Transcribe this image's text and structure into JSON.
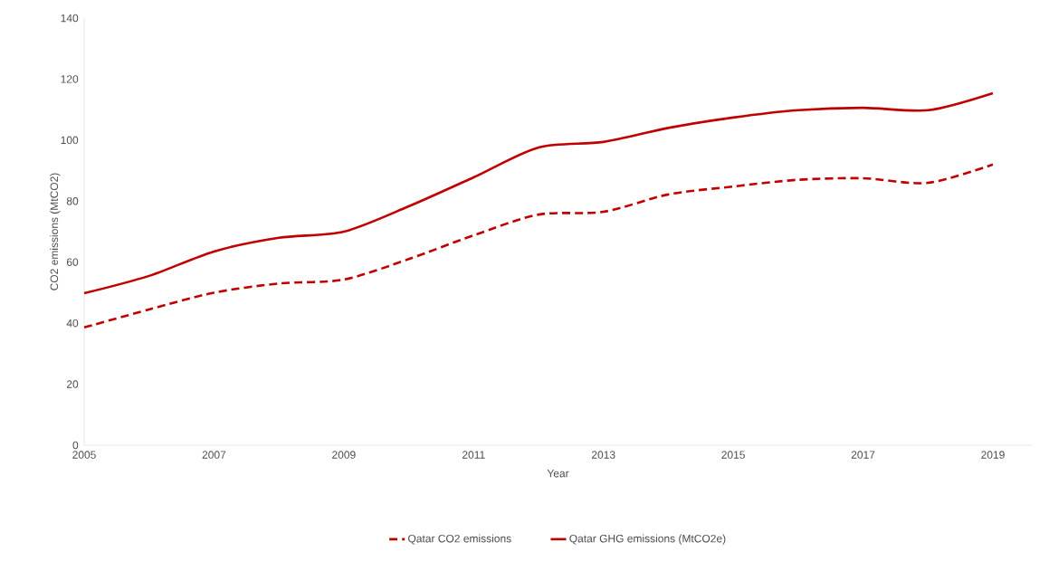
{
  "chart_data": {
    "type": "line",
    "xlabel": "Year",
    "ylabel": "CO2 emissions (MtCO2)",
    "x": [
      2005,
      2006,
      2007,
      2008,
      2009,
      2010,
      2011,
      2012,
      2013,
      2014,
      2015,
      2016,
      2017,
      2018,
      2019
    ],
    "series": [
      {
        "name": "Qatar CO2 emissions",
        "color": "#c00000",
        "line_style": "dashed",
        "values": [
          38.6,
          44.5,
          50,
          53,
          54.3,
          61,
          68.8,
          75.6,
          76.5,
          82.2,
          84.8,
          87,
          87.5,
          86,
          92
        ]
      },
      {
        "name": "Qatar GHG emissions (MtCO2e)",
        "color": "#c00000",
        "line_style": "solid",
        "values": [
          49.8,
          55.5,
          63.5,
          68,
          70,
          78.3,
          87.8,
          97.6,
          99.4,
          104,
          107.4,
          109.8,
          110.6,
          109.8,
          115.4
        ]
      }
    ],
    "xlim": [
      2005,
      2019.6
    ],
    "ylim": [
      0,
      140
    ],
    "xticks": [
      2005,
      2007,
      2009,
      2011,
      2013,
      2015,
      2017,
      2019
    ],
    "yticks": [
      0,
      20,
      40,
      60,
      80,
      100,
      120,
      140
    ],
    "grid": false,
    "legend": "bottom",
    "marker": "none"
  }
}
